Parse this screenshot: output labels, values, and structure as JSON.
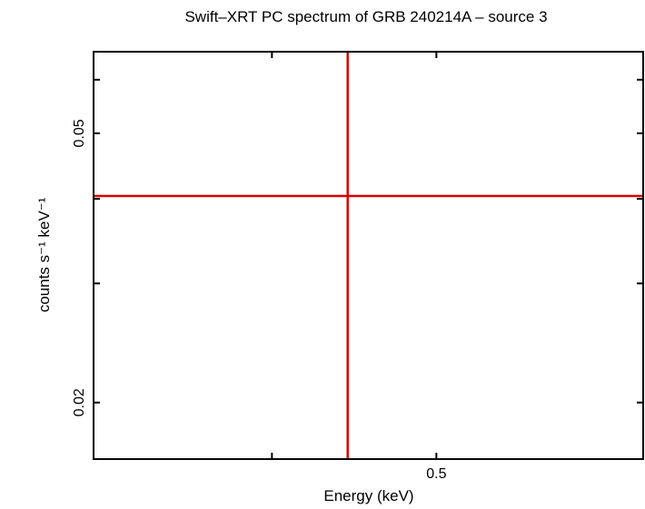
{
  "chart_data": {
    "type": "line",
    "title": "Swift–XRT PC spectrum of GRB 240214A – source 3",
    "xlabel": "Energy (keV)",
    "ylabel": "counts s⁻¹ keV⁻¹",
    "x_scale": "log",
    "y_scale": "log",
    "xlim": [
      0.314,
      0.662
    ],
    "ylim": [
      0.0165,
      0.066
    ],
    "x_ticks": [
      {
        "value": 0.4,
        "label": ""
      },
      {
        "value": 0.5,
        "label": "0.5"
      }
    ],
    "y_ticks": [
      {
        "value": 0.02,
        "label": "0.02"
      },
      {
        "value": 0.03,
        "label": ""
      },
      {
        "value": 0.04,
        "label": ""
      },
      {
        "value": 0.05,
        "label": "0.05"
      },
      {
        "value": 0.06,
        "label": ""
      }
    ],
    "grid": false,
    "series": [
      {
        "color": "#dd0000",
        "points": [
          {
            "x": 0.4433,
            "y": 0.0404
          }
        ]
      }
    ]
  }
}
